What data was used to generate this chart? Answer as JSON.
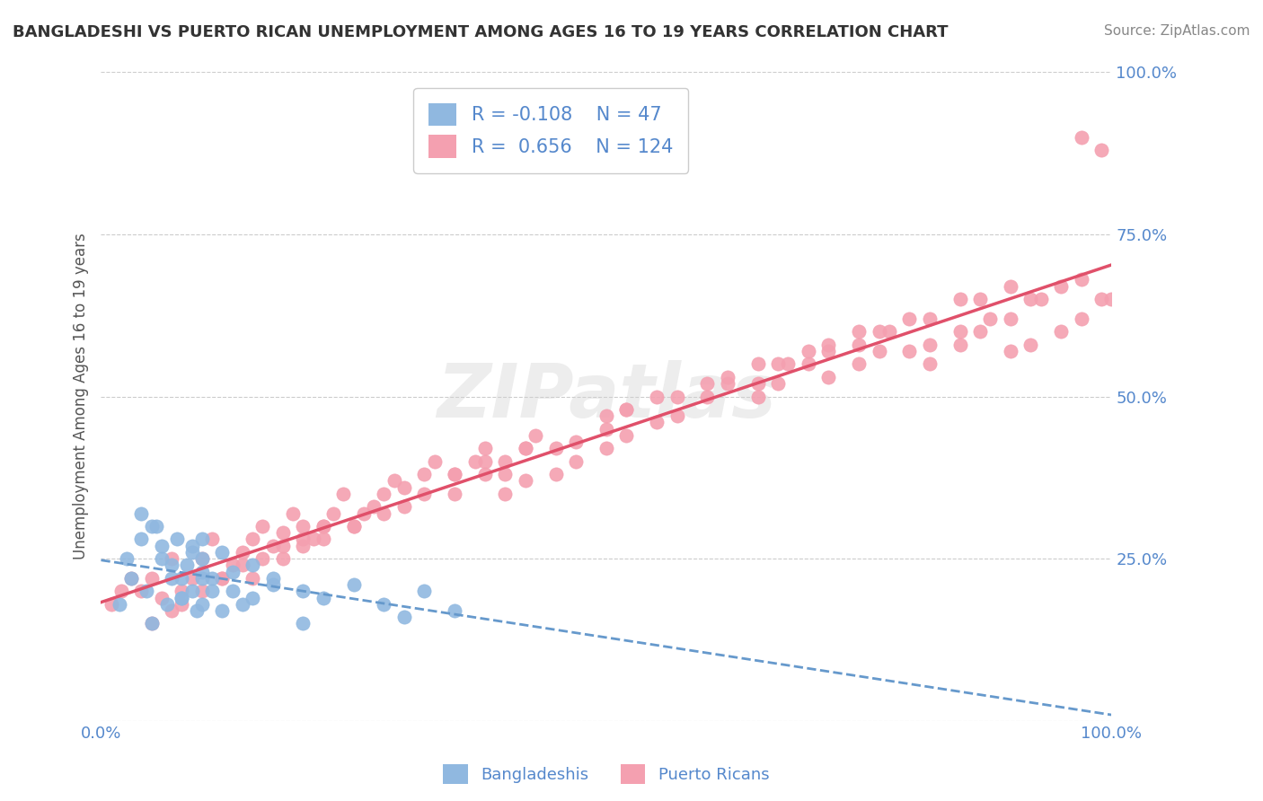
{
  "title": "BANGLADESHI VS PUERTO RICAN UNEMPLOYMENT AMONG AGES 16 TO 19 YEARS CORRELATION CHART",
  "source": "Source: ZipAtlas.com",
  "xlabel": "",
  "ylabel": "Unemployment Among Ages 16 to 19 years",
  "xlim": [
    0.0,
    1.0
  ],
  "ylim": [
    0.0,
    1.0
  ],
  "xticks": [
    0.0,
    1.0
  ],
  "xticklabels": [
    "0.0%",
    "100.0%"
  ],
  "yticks": [
    0.0,
    0.25,
    0.5,
    0.75,
    1.0
  ],
  "yticklabels": [
    "",
    "25.0%",
    "50.0%",
    "75.0%",
    "100.0%"
  ],
  "legend": {
    "R1": "-0.108",
    "N1": "47",
    "R2": "0.656",
    "N2": "124",
    "color1": "#aac4e8",
    "color2": "#f4a0b0"
  },
  "bangladeshi_color": "#90b8e0",
  "puerto_rican_color": "#f4a0b0",
  "trend_bangladeshi_color": "#6699cc",
  "trend_puerto_rican_color": "#e0506a",
  "grid_color": "#cccccc",
  "title_color": "#333333",
  "axis_label_color": "#5588cc",
  "watermark": "ZIPatlas",
  "bg_color": "#ffffff",
  "bangladeshi_x": [
    0.018,
    0.025,
    0.03,
    0.04,
    0.045,
    0.05,
    0.055,
    0.06,
    0.065,
    0.07,
    0.075,
    0.08,
    0.085,
    0.09,
    0.095,
    0.1,
    0.1,
    0.11,
    0.12,
    0.13,
    0.14,
    0.15,
    0.17,
    0.2,
    0.22,
    0.25,
    0.28,
    0.3,
    0.32,
    0.35,
    0.04,
    0.05,
    0.06,
    0.07,
    0.08,
    0.08,
    0.09,
    0.09,
    0.1,
    0.1,
    0.1,
    0.11,
    0.12,
    0.13,
    0.15,
    0.17,
    0.2
  ],
  "bangladeshi_y": [
    0.18,
    0.25,
    0.22,
    0.28,
    0.2,
    0.15,
    0.3,
    0.25,
    0.18,
    0.22,
    0.28,
    0.19,
    0.24,
    0.27,
    0.17,
    0.23,
    0.28,
    0.22,
    0.26,
    0.2,
    0.18,
    0.24,
    0.22,
    0.2,
    0.19,
    0.21,
    0.18,
    0.16,
    0.2,
    0.17,
    0.32,
    0.3,
    0.27,
    0.24,
    0.22,
    0.19,
    0.26,
    0.2,
    0.18,
    0.25,
    0.22,
    0.2,
    0.17,
    0.23,
    0.19,
    0.21,
    0.15
  ],
  "puerto_rican_x": [
    0.01,
    0.02,
    0.03,
    0.04,
    0.05,
    0.06,
    0.07,
    0.08,
    0.09,
    0.1,
    0.11,
    0.12,
    0.13,
    0.14,
    0.15,
    0.16,
    0.17,
    0.18,
    0.19,
    0.2,
    0.21,
    0.22,
    0.23,
    0.24,
    0.25,
    0.26,
    0.27,
    0.28,
    0.29,
    0.3,
    0.32,
    0.33,
    0.35,
    0.37,
    0.38,
    0.4,
    0.42,
    0.43,
    0.45,
    0.47,
    0.5,
    0.52,
    0.55,
    0.57,
    0.6,
    0.62,
    0.65,
    0.67,
    0.7,
    0.72,
    0.75,
    0.77,
    0.8,
    0.82,
    0.85,
    0.87,
    0.9,
    0.92,
    0.95,
    0.97,
    0.65,
    0.68,
    0.72,
    0.75,
    0.78,
    0.82,
    0.85,
    0.88,
    0.9,
    0.93,
    0.35,
    0.38,
    0.4,
    0.42,
    0.45,
    0.47,
    0.5,
    0.52,
    0.15,
    0.18,
    0.2,
    0.22,
    0.25,
    0.28,
    0.3,
    0.32,
    0.35,
    0.38,
    0.4,
    0.42,
    0.05,
    0.07,
    0.08,
    0.1,
    0.12,
    0.14,
    0.16,
    0.18,
    0.2,
    0.22,
    0.5,
    0.52,
    0.55,
    0.57,
    0.6,
    0.62,
    0.65,
    0.67,
    0.7,
    0.72,
    0.75,
    0.77,
    0.8,
    0.82,
    0.85,
    0.87,
    0.9,
    0.92,
    0.95,
    0.97,
    0.99,
    1.0,
    0.97,
    0.99
  ],
  "puerto_rican_y": [
    0.18,
    0.2,
    0.22,
    0.2,
    0.22,
    0.19,
    0.25,
    0.2,
    0.22,
    0.25,
    0.28,
    0.22,
    0.24,
    0.26,
    0.28,
    0.3,
    0.27,
    0.29,
    0.32,
    0.3,
    0.28,
    0.3,
    0.32,
    0.35,
    0.3,
    0.32,
    0.33,
    0.35,
    0.37,
    0.36,
    0.38,
    0.4,
    0.38,
    0.4,
    0.42,
    0.4,
    0.42,
    0.44,
    0.42,
    0.43,
    0.45,
    0.48,
    0.46,
    0.47,
    0.5,
    0.52,
    0.5,
    0.52,
    0.55,
    0.53,
    0.55,
    0.57,
    0.57,
    0.55,
    0.58,
    0.6,
    0.57,
    0.58,
    0.6,
    0.62,
    0.52,
    0.55,
    0.57,
    0.58,
    0.6,
    0.58,
    0.6,
    0.62,
    0.62,
    0.65,
    0.35,
    0.38,
    0.35,
    0.37,
    0.38,
    0.4,
    0.42,
    0.44,
    0.22,
    0.25,
    0.27,
    0.28,
    0.3,
    0.32,
    0.33,
    0.35,
    0.38,
    0.4,
    0.38,
    0.42,
    0.15,
    0.17,
    0.18,
    0.2,
    0.22,
    0.24,
    0.25,
    0.27,
    0.28,
    0.3,
    0.47,
    0.48,
    0.5,
    0.5,
    0.52,
    0.53,
    0.55,
    0.55,
    0.57,
    0.58,
    0.6,
    0.6,
    0.62,
    0.62,
    0.65,
    0.65,
    0.67,
    0.65,
    0.67,
    0.68,
    0.65,
    0.65,
    0.9,
    0.88
  ]
}
